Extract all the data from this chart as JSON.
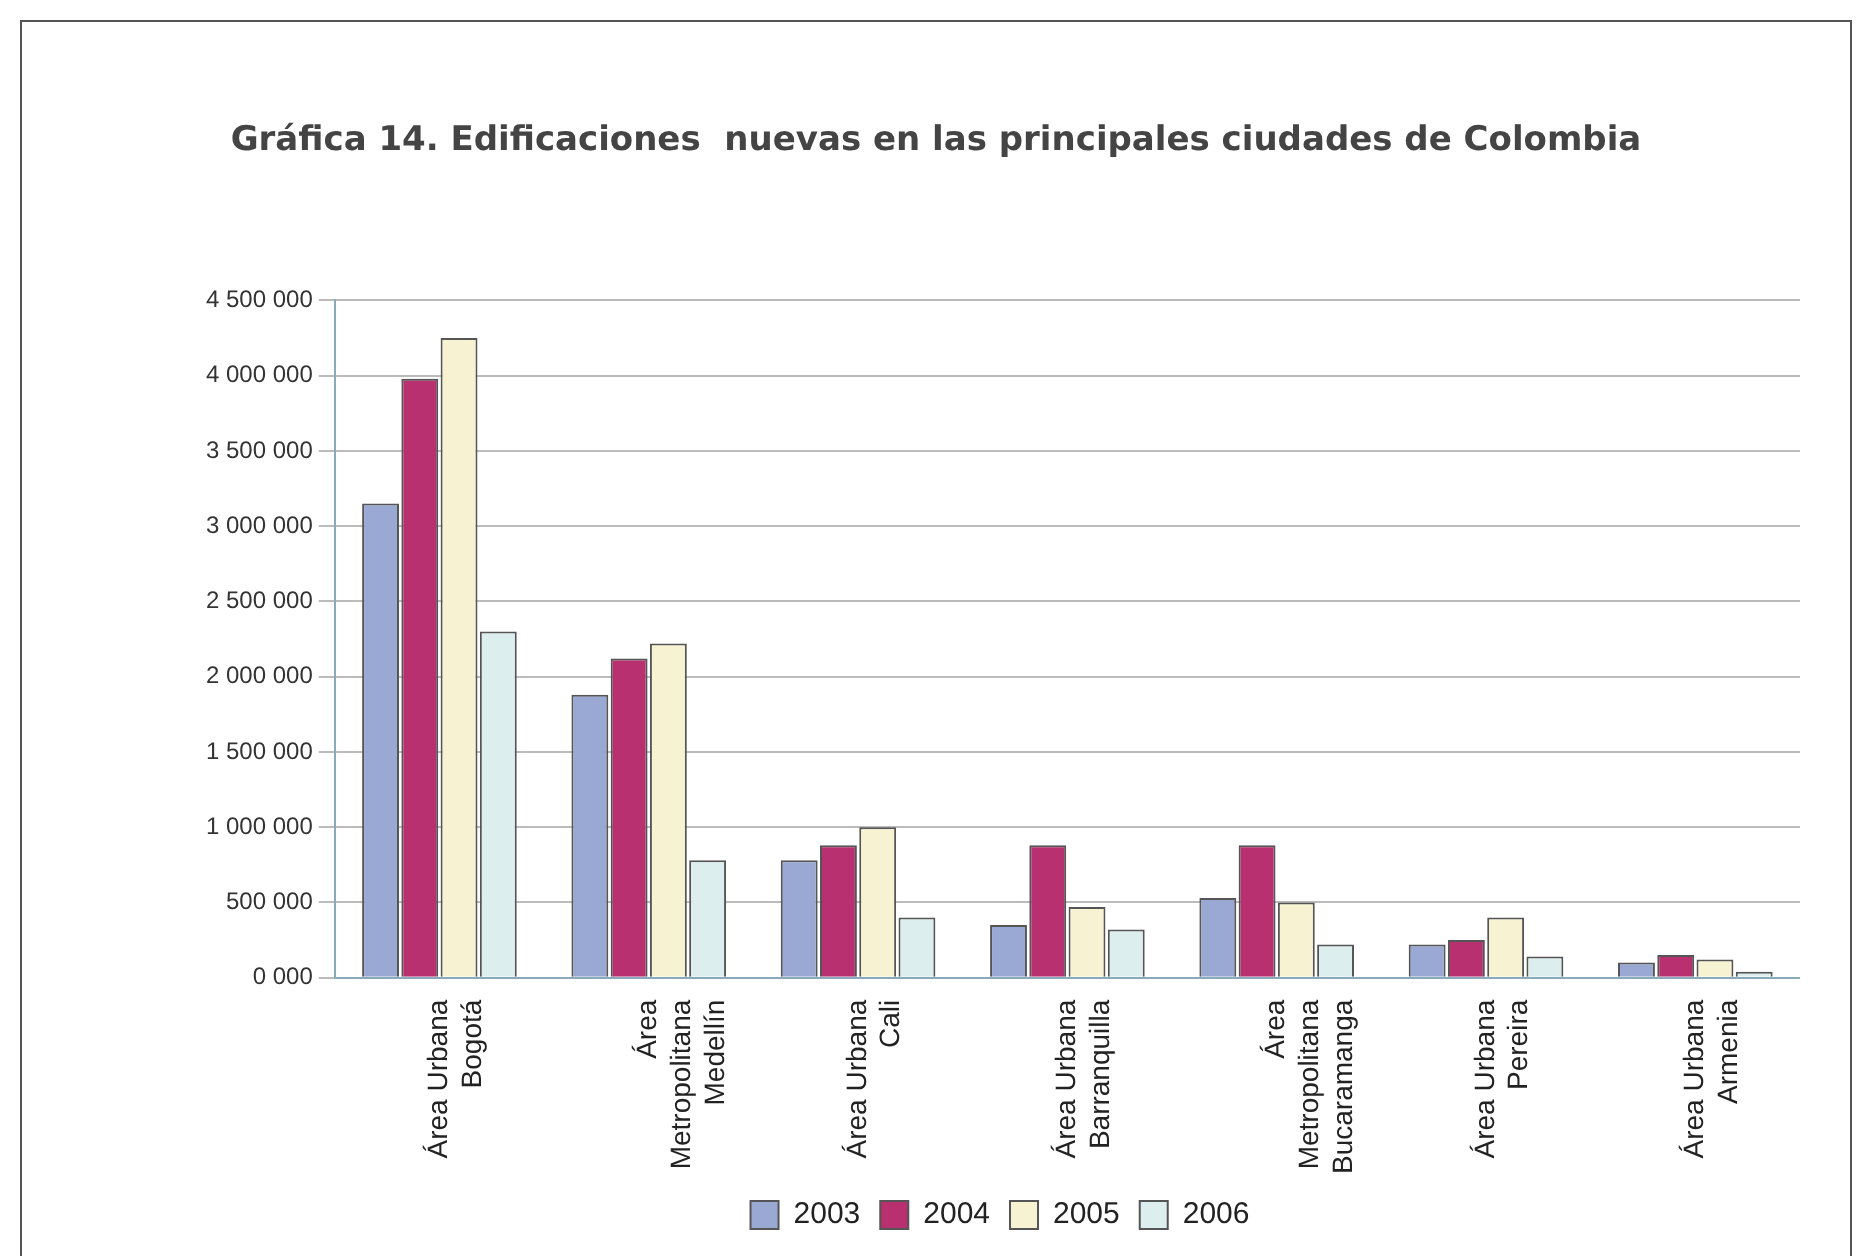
{
  "chart_data": {
    "type": "bar",
    "title": "Gráfica 14. Edificaciones  nuevas en las principales ciudades de Colombia",
    "categories": [
      "Área Urbana\nBogotá",
      "Área\nMetropolitana\nMedellín",
      "Área Urbana\nCali",
      "Área Urbana\nBarranquilla",
      "Área\nMetropolitana\nBucaramanga",
      "Área Urbana\nPereira",
      "Área Urbana\nArmenia"
    ],
    "series": [
      {
        "name": "2003",
        "color": "#9aa8d4",
        "values": [
          3150000,
          1880000,
          780000,
          350000,
          530000,
          220000,
          100000
        ]
      },
      {
        "name": "2004",
        "color": "#b8306f",
        "values": [
          3980000,
          2120000,
          880000,
          880000,
          880000,
          250000,
          150000
        ]
      },
      {
        "name": "2005",
        "color": "#f7f3d2",
        "values": [
          4250000,
          2220000,
          1000000,
          470000,
          500000,
          400000,
          120000
        ]
      },
      {
        "name": "2006",
        "color": "#ddeeee",
        "values": [
          2300000,
          780000,
          400000,
          320000,
          220000,
          140000,
          40000
        ]
      }
    ],
    "ylim": [
      0,
      4500000
    ],
    "yticks": [
      {
        "value": 0,
        "label": "0 000"
      },
      {
        "value": 500000,
        "label": "500 000"
      },
      {
        "value": 1000000,
        "label": "1 000 000"
      },
      {
        "value": 1500000,
        "label": "1 500 000"
      },
      {
        "value": 2000000,
        "label": "2 000 000"
      },
      {
        "value": 2500000,
        "label": "2 500 000"
      },
      {
        "value": 3000000,
        "label": "3 000 000"
      },
      {
        "value": 3500000,
        "label": "3 500 000"
      },
      {
        "value": 4000000,
        "label": "4 000 000"
      },
      {
        "value": 4500000,
        "label": "4 500 000"
      }
    ],
    "grid": "y",
    "legend": "bottom"
  }
}
